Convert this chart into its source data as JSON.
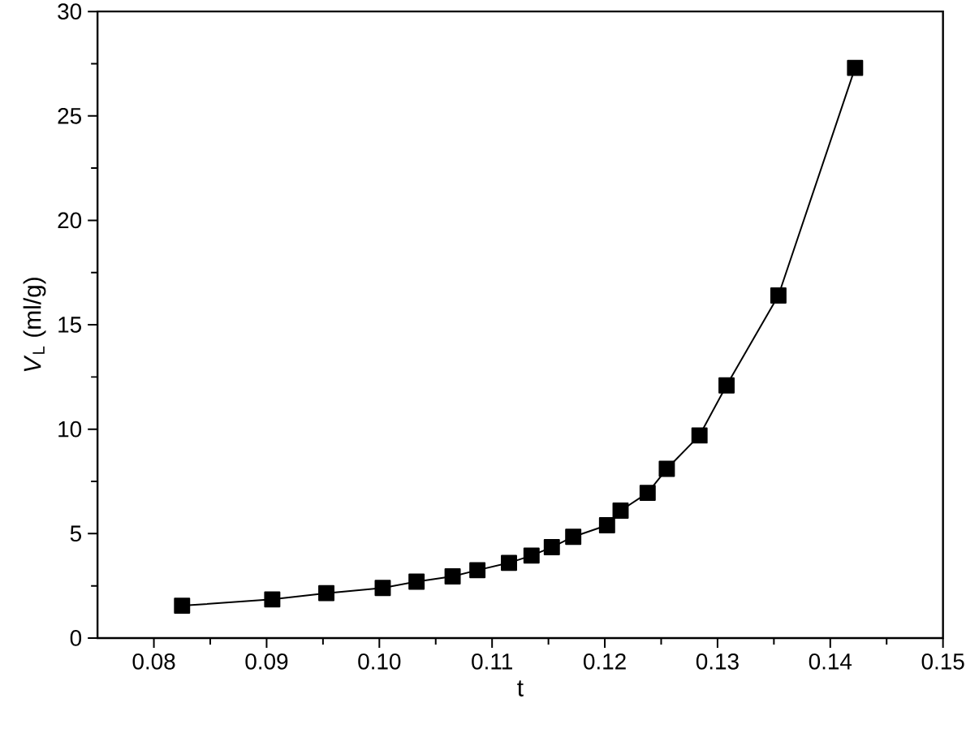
{
  "chart_data": {
    "type": "line",
    "xlabel": "t",
    "ylabel": "*V*$_{L}$ (ml/g)",
    "x": [
      0.0825,
      0.0905,
      0.0953,
      0.1003,
      0.1033,
      0.1065,
      0.1087,
      0.1115,
      0.1135,
      0.1153,
      0.1172,
      0.1202,
      0.1214,
      0.1238,
      0.1255,
      0.1284,
      0.1308,
      0.1354,
      0.1422
    ],
    "values": [
      1.55,
      1.85,
      2.15,
      2.4,
      2.7,
      2.95,
      3.25,
      3.6,
      3.95,
      4.35,
      4.85,
      5.4,
      6.1,
      6.95,
      8.1,
      9.7,
      12.1,
      16.4,
      27.3
    ],
    "color": "#000000",
    "marker": "square",
    "line_style": "solid",
    "xlim": [
      0.075,
      0.15
    ],
    "ylim": [
      0,
      30
    ],
    "xticks": [
      {
        "value": 0.08,
        "label": "0.08"
      },
      {
        "value": 0.09,
        "label": "0.09"
      },
      {
        "value": 0.1,
        "label": "0.10"
      },
      {
        "value": 0.11,
        "label": "0.11"
      },
      {
        "value": 0.12,
        "label": "0.12"
      },
      {
        "value": 0.13,
        "label": "0.13"
      },
      {
        "value": 0.14,
        "label": "0.14"
      },
      {
        "value": 0.15,
        "label": "0.15"
      }
    ],
    "yticks": [
      0,
      5,
      10,
      15,
      20,
      25,
      30
    ]
  }
}
